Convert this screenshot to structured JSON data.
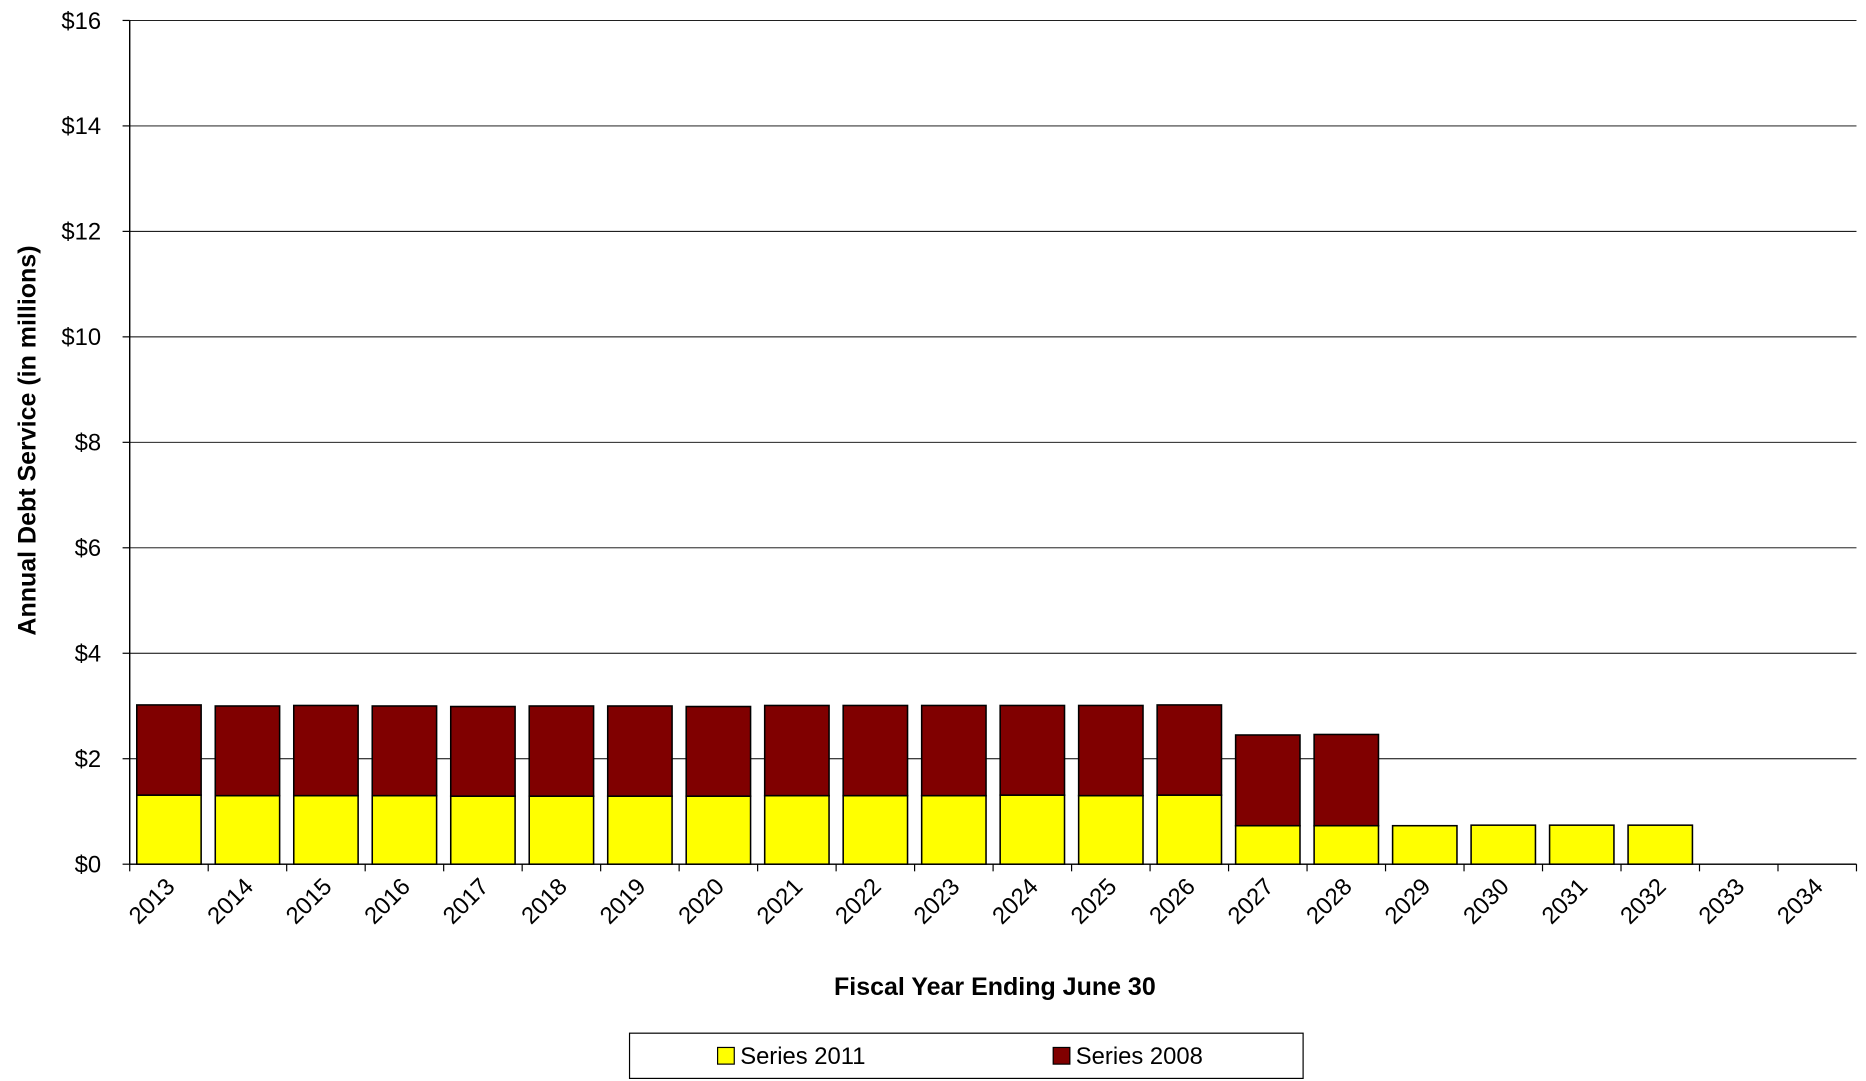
{
  "chart_data": {
    "type": "stacked_bar",
    "x_label": "Fiscal Year Ending June 30",
    "y_label": "Annual Debt Service (in millions)",
    "categories": [
      "2013",
      "2014",
      "2015",
      "2016",
      "2017",
      "2018",
      "2019",
      "2020",
      "2021",
      "2022",
      "2023",
      "2024",
      "2025",
      "2026",
      "2027",
      "2028",
      "2029",
      "2030",
      "2031",
      "2032",
      "2033",
      "2034"
    ],
    "series": [
      {
        "name": "Series 2011",
        "color": "#ffff00",
        "values": [
          1.31,
          1.3,
          1.3,
          1.3,
          1.29,
          1.29,
          1.29,
          1.29,
          1.3,
          1.3,
          1.3,
          1.31,
          1.3,
          1.31,
          0.73,
          0.73,
          0.73,
          0.74,
          0.74,
          0.74,
          null,
          null
        ]
      },
      {
        "name": "Series 2008",
        "color": "#800000",
        "values": [
          1.71,
          1.7,
          1.71,
          1.7,
          1.7,
          1.71,
          1.71,
          1.7,
          1.71,
          1.71,
          1.71,
          1.7,
          1.71,
          1.71,
          1.72,
          1.73,
          null,
          null,
          null,
          null,
          null,
          null
        ]
      }
    ],
    "ylim": [
      0,
      16
    ],
    "yticks": [
      {
        "value": 0,
        "label": "$0"
      },
      {
        "value": 2,
        "label": "$2"
      },
      {
        "value": 4,
        "label": "$4"
      },
      {
        "value": 6,
        "label": "$6"
      },
      {
        "value": 8,
        "label": "$8"
      },
      {
        "value": 10,
        "label": "$10"
      },
      {
        "value": 12,
        "label": "$12"
      },
      {
        "value": 14,
        "label": "$14"
      },
      {
        "value": 16,
        "label": "$16"
      }
    ],
    "grid": true,
    "legend": "bottom"
  }
}
